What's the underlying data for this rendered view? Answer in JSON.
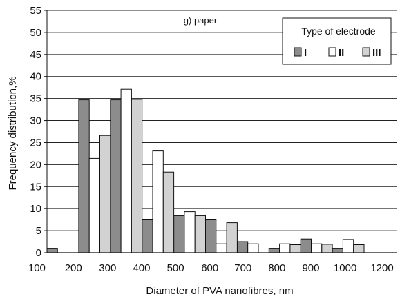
{
  "chart_data": {
    "type": "bar",
    "annotation": "g) paper",
    "xlabel": "Diameter of PVA nanofibres, nm",
    "ylabel": "Frequency distribution,%",
    "ylim": [
      0,
      55
    ],
    "yticks": [
      "0",
      "5",
      "10",
      "15",
      "20",
      "25",
      "30",
      "35",
      "40",
      "45",
      "50",
      "55"
    ],
    "categories": [
      "100",
      "200",
      "300",
      "400",
      "500",
      "600",
      "700",
      "800",
      "900",
      "1000",
      "1200"
    ],
    "grid": true,
    "legend": {
      "title": "Type of electrode",
      "placement": "top-right",
      "labels": [
        "I",
        "II",
        "III"
      ]
    },
    "series": [
      {
        "name": "I",
        "color": "#8c8c8c",
        "x": [
          100,
          200,
          300,
          400,
          500,
          600,
          700,
          800,
          900,
          1000
        ],
        "values": [
          1.0,
          34.7,
          34.7,
          7.6,
          8.4,
          7.6,
          2.5,
          1.0,
          3.1,
          1.0
        ]
      },
      {
        "name": "II",
        "color": "#ffffff",
        "x": [
          200,
          300,
          400,
          500,
          600,
          700,
          800,
          900,
          1000,
          1200
        ],
        "values": [
          21.4,
          37.1,
          23.1,
          9.3,
          2.0,
          2.0,
          2.0,
          2.0,
          3.0,
          1.1
        ]
      },
      {
        "name": "III",
        "color": "#d2d2d2",
        "x": [
          200,
          300,
          400,
          500,
          600,
          800,
          900,
          1000
        ],
        "values": [
          26.6,
          34.8,
          18.3,
          8.4,
          6.8,
          1.8,
          1.9,
          1.8
        ]
      }
    ]
  }
}
